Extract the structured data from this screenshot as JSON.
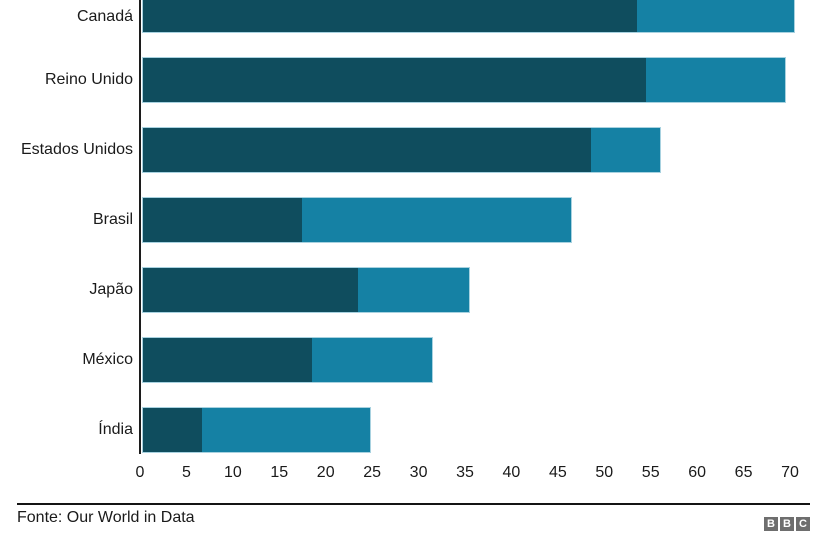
{
  "chart_data": {
    "type": "bar",
    "orientation": "horizontal",
    "stacked": true,
    "title": "",
    "categories": [
      "Canadá",
      "Reino Unido",
      "Estados Unidos",
      "Brasil",
      "Japão",
      "México",
      "Índia"
    ],
    "series": [
      {
        "name": "dark-segment",
        "color": "#0f4d5e",
        "values": [
          53.2,
          54.2,
          48.2,
          17.1,
          23.2,
          18.2,
          6.4
        ]
      },
      {
        "name": "light-segment",
        "color": "#1581a4",
        "values": [
          17.1,
          15.1,
          7.7,
          29.2,
          12.1,
          13.1,
          18.3
        ]
      }
    ],
    "stack_totals": [
      70.3,
      69.3,
      55.9,
      46.3,
      35.3,
      31.3,
      24.7
    ],
    "xlabel": "",
    "ylabel": "",
    "xlim": [
      0,
      70
    ],
    "x_ticks": [
      0,
      5,
      10,
      15,
      20,
      25,
      30,
      35,
      40,
      45,
      50,
      55,
      60,
      65,
      70
    ],
    "grid": false,
    "legend_position": "none",
    "layout_hints": {
      "bar_outline_color": "#a8d2e0",
      "axis_line_color": "#1c1c1c",
      "first_bar_cropped_at_top": true
    }
  },
  "footer": {
    "source": "Fonte: Our World in Data",
    "logo": {
      "letters": [
        "B",
        "B",
        "C"
      ],
      "block_color": "#6e6e6e"
    }
  }
}
